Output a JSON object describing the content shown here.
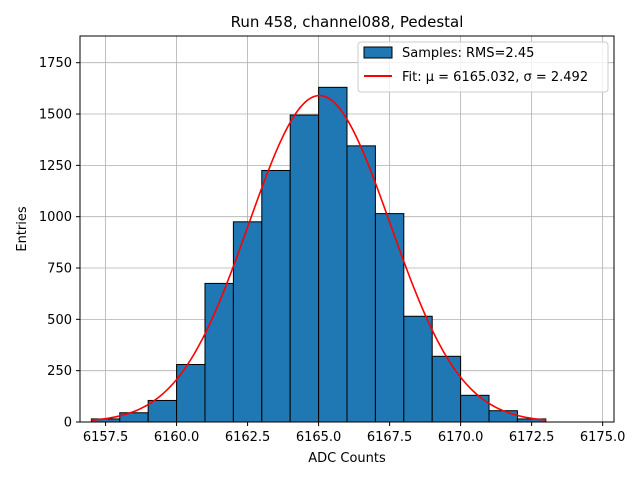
{
  "chart_data": {
    "type": "bar",
    "title": "Run 458, channel088, Pedestal",
    "xlabel": "ADC Counts",
    "ylabel": "Entries",
    "xlim": [
      6156.6,
      6175.4
    ],
    "ylim": [
      0,
      1880
    ],
    "xticks": [
      6157.5,
      6160.0,
      6162.5,
      6165.0,
      6167.5,
      6170.0,
      6172.5,
      6175.0
    ],
    "xtick_labels": [
      "6157.5",
      "6160.0",
      "6162.5",
      "6165.0",
      "6167.5",
      "6170.0",
      "6172.5",
      "6175.0"
    ],
    "yticks": [
      0,
      250,
      500,
      750,
      1000,
      1250,
      1500,
      1750
    ],
    "ytick_labels": [
      "0",
      "250",
      "500",
      "750",
      "1000",
      "1250",
      "1500",
      "1750"
    ],
    "grid": true,
    "legend_position": "top-right",
    "histogram": {
      "name": "Samples: RMS=2.45",
      "color": "#1f77b4",
      "edgecolor": "#000000",
      "bin_edges": [
        6157,
        6158,
        6159,
        6160,
        6161,
        6162,
        6163,
        6164,
        6165,
        6166,
        6167,
        6168,
        6169,
        6170,
        6171,
        6172,
        6173
      ],
      "values": [
        15,
        45,
        105,
        280,
        675,
        975,
        1225,
        1495,
        1630,
        1345,
        1015,
        515,
        320,
        130,
        55,
        15
      ]
    },
    "fit": {
      "name": "Fit: μ = 6165.032, σ = 2.492",
      "color": "#ff0000",
      "mu": 6165.032,
      "sigma": 2.492,
      "amplitude": 1590,
      "x_range": [
        6157,
        6173
      ]
    }
  }
}
